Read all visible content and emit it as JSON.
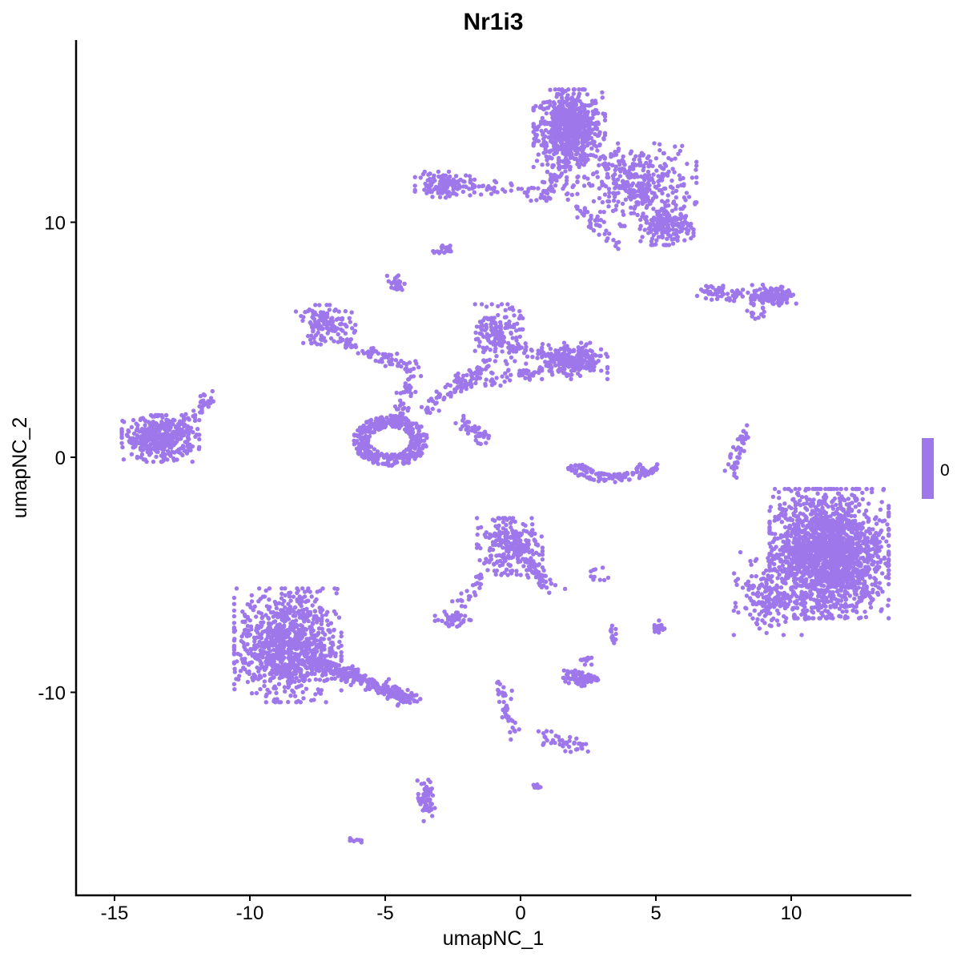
{
  "chart_data": {
    "type": "scatter",
    "title": "Nr1i3",
    "xlabel": "umapNC_1",
    "ylabel": "umapNC_2",
    "xlim": [
      -16.3,
      14.5
    ],
    "ylim": [
      -17.6,
      17.7
    ],
    "x_ticks": [
      -15,
      -10,
      -5,
      0,
      5,
      10
    ],
    "y_ticks": [
      -10,
      0,
      10
    ],
    "grid": false,
    "point_color": "#9E77EB",
    "legend": {
      "placement": "right",
      "type": "colorbar",
      "labels": [
        "0"
      ],
      "color": "#9E77EB"
    },
    "note_values": "all cells have expression value 0",
    "clusters": [
      {
        "kind": "blob",
        "center": [
          1.8,
          14.0
        ],
        "sd": [
          0.6,
          0.75
        ],
        "n": 700
      },
      {
        "kind": "blob",
        "center": [
          4.3,
          11.6
        ],
        "sd": [
          1.0,
          0.8
        ],
        "n": 380
      },
      {
        "kind": "blob",
        "center": [
          5.4,
          9.8
        ],
        "sd": [
          0.45,
          0.35
        ],
        "n": 160
      },
      {
        "kind": "segment",
        "from": [
          1.0,
          12.2
        ],
        "to": [
          3.5,
          9.0
        ],
        "n": 60
      },
      {
        "kind": "blob",
        "center": [
          -2.8,
          11.6
        ],
        "sd": [
          0.5,
          0.25
        ],
        "n": 130
      },
      {
        "kind": "segment",
        "from": [
          -2.0,
          11.5
        ],
        "to": [
          1.0,
          11.2
        ],
        "n": 40
      },
      {
        "kind": "segment",
        "from": [
          0.8,
          11.0
        ],
        "to": [
          1.6,
          12.6
        ],
        "n": 40
      },
      {
        "kind": "blob",
        "center": [
          -2.9,
          8.8
        ],
        "sd": [
          0.15,
          0.1
        ],
        "n": 20
      },
      {
        "kind": "blob",
        "center": [
          -4.6,
          7.4
        ],
        "sd": [
          0.15,
          0.2
        ],
        "n": 25
      },
      {
        "kind": "segment",
        "from": [
          6.6,
          7.1
        ],
        "to": [
          9.0,
          6.7
        ],
        "n": 70
      },
      {
        "kind": "blob",
        "center": [
          9.4,
          6.9
        ],
        "sd": [
          0.4,
          0.2
        ],
        "n": 110
      },
      {
        "kind": "segment",
        "from": [
          8.5,
          6.1
        ],
        "to": [
          9.1,
          6.5
        ],
        "n": 12
      },
      {
        "kind": "blob",
        "center": [
          -13.3,
          0.8
        ],
        "sd": [
          0.65,
          0.45
        ],
        "n": 420
      },
      {
        "kind": "segment",
        "from": [
          -12.5,
          1.0
        ],
        "to": [
          -11.5,
          2.6
        ],
        "n": 40
      },
      {
        "kind": "blob",
        "center": [
          -7.2,
          5.6
        ],
        "sd": [
          0.5,
          0.4
        ],
        "n": 130
      },
      {
        "kind": "segment",
        "from": [
          -6.8,
          4.9
        ],
        "to": [
          -4.0,
          3.9
        ],
        "n": 60
      },
      {
        "kind": "ring",
        "center": [
          -4.8,
          0.7
        ],
        "sd": [
          0.9,
          0.7
        ],
        "n": 420
      },
      {
        "kind": "segment",
        "from": [
          -4.5,
          1.5
        ],
        "to": [
          -4.0,
          4.0
        ],
        "n": 50
      },
      {
        "kind": "segment",
        "from": [
          -3.6,
          1.9
        ],
        "to": [
          -1.2,
          4.1
        ],
        "n": 70
      },
      {
        "kind": "segment",
        "from": [
          -2.5,
          3.1
        ],
        "to": [
          1.4,
          3.8
        ],
        "n": 80
      },
      {
        "kind": "blob",
        "center": [
          -0.8,
          5.3
        ],
        "sd": [
          0.4,
          0.55
        ],
        "n": 160
      },
      {
        "kind": "segment",
        "from": [
          -0.5,
          4.7
        ],
        "to": [
          1.5,
          4.2
        ],
        "n": 50
      },
      {
        "kind": "blob",
        "center": [
          2.0,
          4.1
        ],
        "sd": [
          0.55,
          0.35
        ],
        "n": 210
      },
      {
        "kind": "segment",
        "from": [
          -2.4,
          1.7
        ],
        "to": [
          -1.3,
          0.7
        ],
        "n": 40
      },
      {
        "kind": "arc",
        "center": [
          3.4,
          -0.3
        ],
        "sd": [
          1.1,
          0.5
        ],
        "n": 130
      },
      {
        "kind": "segment",
        "from": [
          8.3,
          1.2
        ],
        "to": [
          7.8,
          -0.7
        ],
        "n": 45
      },
      {
        "kind": "blob",
        "center": [
          11.4,
          -4.1
        ],
        "sd": [
          1.0,
          1.25
        ],
        "n": 1900
      },
      {
        "kind": "blob",
        "center": [
          9.2,
          -5.8
        ],
        "sd": [
          0.6,
          0.8
        ],
        "n": 180
      },
      {
        "kind": "blob",
        "center": [
          -0.4,
          -3.8
        ],
        "sd": [
          0.55,
          0.55
        ],
        "n": 260
      },
      {
        "kind": "segment",
        "from": [
          0.2,
          -4.3
        ],
        "to": [
          1.1,
          -5.6
        ],
        "n": 50
      },
      {
        "kind": "segment",
        "from": [
          -2.2,
          -6.4
        ],
        "to": [
          -1.4,
          -5.0
        ],
        "n": 25
      },
      {
        "kind": "blob",
        "center": [
          -2.5,
          -6.9
        ],
        "sd": [
          0.3,
          0.15
        ],
        "n": 55
      },
      {
        "kind": "blob",
        "center": [
          -8.6,
          -8.0
        ],
        "sd": [
          0.9,
          1.1
        ],
        "n": 950
      },
      {
        "kind": "segment",
        "from": [
          -7.8,
          -8.6
        ],
        "to": [
          -4.0,
          -10.3
        ],
        "n": 280
      },
      {
        "kind": "blob",
        "center": [
          2.2,
          -9.4
        ],
        "sd": [
          0.3,
          0.15
        ],
        "n": 80
      },
      {
        "kind": "blob",
        "center": [
          2.4,
          -8.6
        ],
        "sd": [
          0.1,
          0.1
        ],
        "n": 12
      },
      {
        "kind": "segment",
        "from": [
          -0.9,
          -9.5
        ],
        "to": [
          -0.2,
          -11.8
        ],
        "n": 40
      },
      {
        "kind": "segment",
        "from": [
          0.5,
          -11.8
        ],
        "to": [
          2.5,
          -12.4
        ],
        "n": 40
      },
      {
        "kind": "blob",
        "center": [
          -3.5,
          -14.6
        ],
        "sd": [
          0.15,
          0.4
        ],
        "n": 60
      },
      {
        "kind": "blob",
        "center": [
          -6.1,
          -16.3
        ],
        "sd": [
          0.1,
          0.05
        ],
        "n": 8
      },
      {
        "kind": "blob",
        "center": [
          0.6,
          -14.0
        ],
        "sd": [
          0.08,
          0.05
        ],
        "n": 8
      },
      {
        "kind": "blob",
        "center": [
          5.1,
          -7.2
        ],
        "sd": [
          0.1,
          0.2
        ],
        "n": 20
      },
      {
        "kind": "blob",
        "center": [
          3.4,
          -7.6
        ],
        "sd": [
          0.08,
          0.2
        ],
        "n": 15
      },
      {
        "kind": "segment",
        "from": [
          2.6,
          -5.1
        ],
        "to": [
          3.0,
          -4.9
        ],
        "n": 10
      }
    ]
  }
}
